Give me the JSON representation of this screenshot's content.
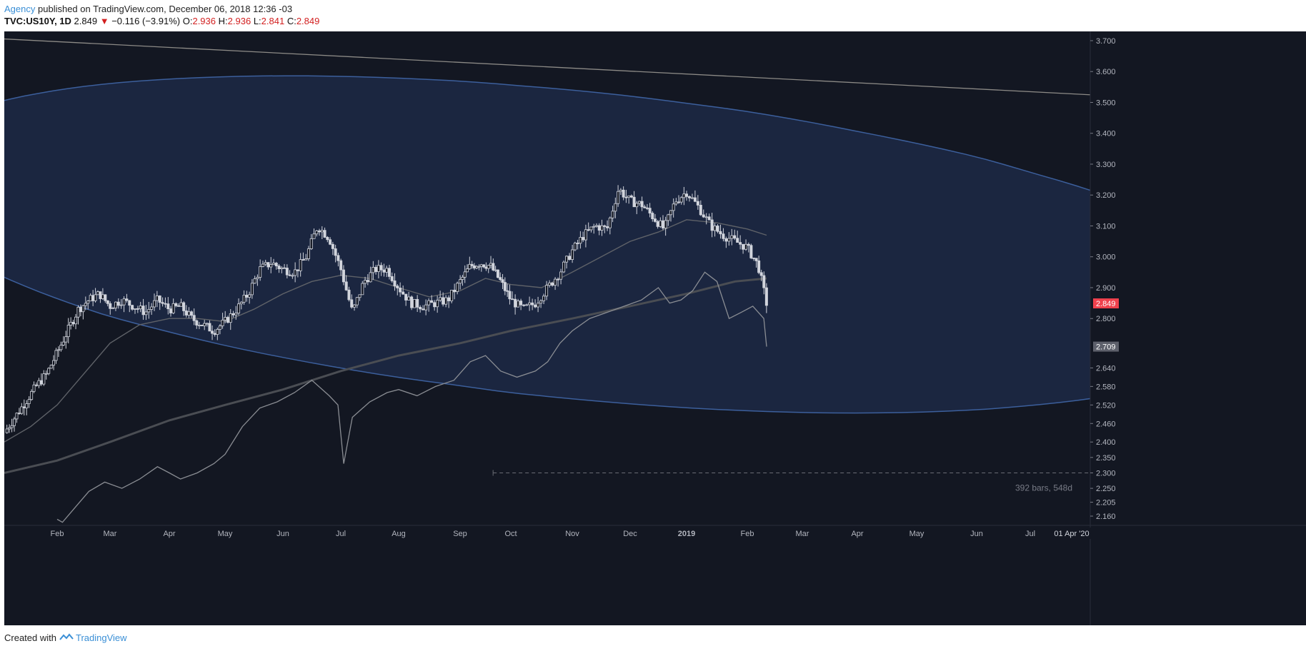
{
  "header": {
    "author": "Agency",
    "published": "published on TradingView.com, December 06, 2018 12:36 -03",
    "symbol": "TVC:US10Y, 1D",
    "last": "2.849",
    "change": "−0.116 (−3.91%)",
    "o_label": "O:",
    "o": "2.936",
    "h_label": "H:",
    "h": "2.936",
    "l_label": "L:",
    "l": "2.841",
    "c_label": "C:",
    "c": "2.849"
  },
  "footer": {
    "created": "Created with",
    "brand": "TradingView"
  },
  "colors": {
    "background": "#131722",
    "ellipse_stroke": "#3c5f9c",
    "ellipse_fill": "#1b2640",
    "line": "#8a8d93",
    "price_badge": "#f0414d",
    "secondary_badge": "#5d606b"
  },
  "chart_data": {
    "type": "candlestick",
    "symbol": "TVC:US10Y",
    "interval": "1D",
    "ylim": [
      2.13,
      3.73
    ],
    "y_ticks": [
      "3.700",
      "3.600",
      "3.500",
      "3.400",
      "3.300",
      "3.200",
      "3.100",
      "3.000",
      "2.900",
      "2.800",
      "2.640",
      "2.580",
      "2.520",
      "2.460",
      "2.400",
      "2.350",
      "2.300",
      "2.250",
      "2.205",
      "2.160"
    ],
    "x_ticks": [
      "Feb",
      "Mar",
      "Apr",
      "May",
      "Jun",
      "Jul",
      "Aug",
      "Sep",
      "Oct",
      "Nov",
      "Dec",
      "2019",
      "Feb",
      "Mar",
      "Apr",
      "May",
      "Jun",
      "Jul"
    ],
    "x_end_label": "01 Apr '20",
    "last_price": 2.849,
    "secondary_value": 2.709,
    "measure_label": "392 bars, 548d",
    "close_path": [
      [
        0,
        2.43
      ],
      [
        0.2,
        2.48
      ],
      [
        0.4,
        2.53
      ],
      [
        0.6,
        2.58
      ],
      [
        0.8,
        2.62
      ],
      [
        1.0,
        2.69
      ],
      [
        1.2,
        2.76
      ],
      [
        1.4,
        2.83
      ],
      [
        1.6,
        2.86
      ],
      [
        1.8,
        2.88
      ],
      [
        2.0,
        2.84
      ],
      [
        2.2,
        2.86
      ],
      [
        2.4,
        2.84
      ],
      [
        2.6,
        2.82
      ],
      [
        2.8,
        2.86
      ],
      [
        3.0,
        2.83
      ],
      [
        3.2,
        2.84
      ],
      [
        3.4,
        2.8
      ],
      [
        3.6,
        2.78
      ],
      [
        3.8,
        2.76
      ],
      [
        4.0,
        2.79
      ],
      [
        4.2,
        2.83
      ],
      [
        4.4,
        2.88
      ],
      [
        4.6,
        2.96
      ],
      [
        4.8,
        2.98
      ],
      [
        5.0,
        2.96
      ],
      [
        5.2,
        2.95
      ],
      [
        5.4,
        3.0
      ],
      [
        5.6,
        3.1
      ],
      [
        5.8,
        3.06
      ],
      [
        6.0,
        2.96
      ],
      [
        6.2,
        2.82
      ],
      [
        6.4,
        2.92
      ],
      [
        6.6,
        2.96
      ],
      [
        6.8,
        2.96
      ],
      [
        7.0,
        2.9
      ],
      [
        7.2,
        2.85
      ],
      [
        7.4,
        2.84
      ],
      [
        7.6,
        2.85
      ],
      [
        7.8,
        2.86
      ],
      [
        8.0,
        2.92
      ],
      [
        8.2,
        2.97
      ],
      [
        8.4,
        2.98
      ],
      [
        8.6,
        2.97
      ],
      [
        8.8,
        2.92
      ],
      [
        9.0,
        2.86
      ],
      [
        9.2,
        2.83
      ],
      [
        9.4,
        2.85
      ],
      [
        9.6,
        2.9
      ],
      [
        9.8,
        2.95
      ],
      [
        10.0,
        3.02
      ],
      [
        10.2,
        3.07
      ],
      [
        10.4,
        3.1
      ],
      [
        10.6,
        3.09
      ],
      [
        10.8,
        3.22
      ],
      [
        11.0,
        3.18
      ],
      [
        11.2,
        3.17
      ],
      [
        11.4,
        3.13
      ],
      [
        11.6,
        3.09
      ],
      [
        11.8,
        3.18
      ],
      [
        12.0,
        3.21
      ],
      [
        12.2,
        3.16
      ],
      [
        12.4,
        3.1
      ],
      [
        12.6,
        3.07
      ],
      [
        12.8,
        3.05
      ],
      [
        13.0,
        3.03
      ],
      [
        13.2,
        2.97
      ],
      [
        13.35,
        2.849
      ]
    ],
    "ma_fast_path": [
      [
        0,
        2.4
      ],
      [
        0.5,
        2.45
      ],
      [
        1.0,
        2.52
      ],
      [
        1.5,
        2.62
      ],
      [
        2.0,
        2.72
      ],
      [
        2.5,
        2.78
      ],
      [
        3.0,
        2.8
      ],
      [
        3.5,
        2.8
      ],
      [
        4.0,
        2.79
      ],
      [
        4.5,
        2.83
      ],
      [
        5.0,
        2.88
      ],
      [
        5.5,
        2.92
      ],
      [
        6.0,
        2.94
      ],
      [
        6.5,
        2.93
      ],
      [
        7.0,
        2.9
      ],
      [
        7.5,
        2.87
      ],
      [
        8.0,
        2.89
      ],
      [
        8.5,
        2.93
      ],
      [
        9.0,
        2.91
      ],
      [
        9.5,
        2.9
      ],
      [
        10.0,
        2.95
      ],
      [
        10.5,
        3.0
      ],
      [
        11.0,
        3.05
      ],
      [
        11.5,
        3.08
      ],
      [
        12.0,
        3.12
      ],
      [
        12.5,
        3.11
      ],
      [
        13.0,
        3.09
      ],
      [
        13.35,
        3.07
      ]
    ],
    "ma_slow_path": [
      [
        0,
        2.3
      ],
      [
        1.0,
        2.34
      ],
      [
        2.0,
        2.4
      ],
      [
        3.0,
        2.47
      ],
      [
        4.0,
        2.52
      ],
      [
        5.0,
        2.57
      ],
      [
        6.0,
        2.63
      ],
      [
        7.0,
        2.68
      ],
      [
        8.0,
        2.72
      ],
      [
        9.0,
        2.76
      ],
      [
        10.0,
        2.8
      ],
      [
        11.0,
        2.84
      ],
      [
        12.0,
        2.88
      ],
      [
        12.8,
        2.92
      ],
      [
        13.35,
        2.93
      ]
    ],
    "secondary_path": [
      [
        1.0,
        2.15
      ],
      [
        1.1,
        2.14
      ],
      [
        1.4,
        2.2
      ],
      [
        1.6,
        2.24
      ],
      [
        1.9,
        2.27
      ],
      [
        2.2,
        2.25
      ],
      [
        2.5,
        2.28
      ],
      [
        2.8,
        2.32
      ],
      [
        3.0,
        2.3
      ],
      [
        3.2,
        2.28
      ],
      [
        3.5,
        2.3
      ],
      [
        3.8,
        2.33
      ],
      [
        4.0,
        2.36
      ],
      [
        4.3,
        2.45
      ],
      [
        4.6,
        2.51
      ],
      [
        4.9,
        2.53
      ],
      [
        5.2,
        2.56
      ],
      [
        5.5,
        2.6
      ],
      [
        5.8,
        2.55
      ],
      [
        5.95,
        2.52
      ],
      [
        6.05,
        2.33
      ],
      [
        6.2,
        2.48
      ],
      [
        6.5,
        2.53
      ],
      [
        6.8,
        2.56
      ],
      [
        7.0,
        2.57
      ],
      [
        7.3,
        2.55
      ],
      [
        7.6,
        2.58
      ],
      [
        7.9,
        2.6
      ],
      [
        8.2,
        2.66
      ],
      [
        8.5,
        2.68
      ],
      [
        8.8,
        2.63
      ],
      [
        9.1,
        2.61
      ],
      [
        9.4,
        2.63
      ],
      [
        9.6,
        2.66
      ],
      [
        9.8,
        2.72
      ],
      [
        10.0,
        2.76
      ],
      [
        10.3,
        2.8
      ],
      [
        10.6,
        2.82
      ],
      [
        10.9,
        2.84
      ],
      [
        11.2,
        2.86
      ],
      [
        11.5,
        2.9
      ],
      [
        11.7,
        2.85
      ],
      [
        11.9,
        2.86
      ],
      [
        12.1,
        2.89
      ],
      [
        12.3,
        2.95
      ],
      [
        12.5,
        2.92
      ],
      [
        12.7,
        2.8
      ],
      [
        12.9,
        2.82
      ],
      [
        13.1,
        2.84
      ],
      [
        13.3,
        2.8
      ],
      [
        13.35,
        2.709
      ]
    ],
    "ellipse": {
      "center_x": 10.0,
      "center_y": 3.04,
      "half_width": 12.2,
      "half_height_y": 0.5,
      "tilt_slope": -0.018
    },
    "trendline": [
      [
        -0.5,
        3.71
      ],
      [
        19.5,
        3.52
      ]
    ],
    "measure": {
      "x": [
        8.65,
        19.5
      ],
      "y": 2.3
    }
  }
}
